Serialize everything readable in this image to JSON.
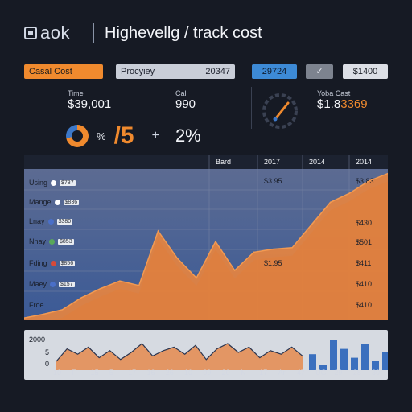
{
  "header": {
    "logo_text": "aok",
    "title": "Highevellg / track cost"
  },
  "filters": {
    "cost_label": "Casal Cost",
    "provider_label": "Procyiey",
    "provider_value": "20347",
    "blue_value": "29724",
    "check_glyph": "✓",
    "light_value": "$1400"
  },
  "stats": {
    "time_label": "Time",
    "time_value": "$39,001",
    "call_label": "Call",
    "call_value": "990",
    "pct_small": "%",
    "pct_big": "/5",
    "plus_glyph": "+",
    "pct2": "2%",
    "yoba_label": "Yoba Cast",
    "yoba_value_white": "$1.8",
    "yoba_value_orange": "3369"
  },
  "main_chart": {
    "col_headers": [
      "Bard",
      "2017",
      "2014",
      "2014"
    ],
    "rows": [
      {
        "label": "Using",
        "chip": "$787"
      },
      {
        "label": "Mange",
        "chip": "$836"
      },
      {
        "label": "Lnay",
        "chip": "$380"
      },
      {
        "label": "Nnay",
        "chip": "$853"
      },
      {
        "label": "Fding",
        "chip": "$856"
      },
      {
        "label": "Maey",
        "chip": "$157"
      },
      {
        "label": "Froe",
        "chip": ""
      }
    ],
    "row_dot_colors": [
      "#ffffff",
      "#ffffff",
      "#4a6fc8",
      "#59a85a",
      "#d64a3a",
      "#4a6fc8",
      "#ffffff"
    ],
    "mid_values": [
      "$3.95",
      "$1.95"
    ],
    "right_values": [
      "$3.83",
      "$430",
      "$501",
      "$411",
      "$410",
      "$410"
    ]
  },
  "chart_data": {
    "type": "area",
    "title": "",
    "x": [
      0,
      1,
      2,
      3,
      4,
      5,
      6,
      7,
      8,
      9,
      10,
      11,
      12,
      13,
      14,
      15,
      16,
      17,
      18,
      19
    ],
    "series": [
      {
        "values": [
          3,
          8,
          14,
          30,
          42,
          52,
          46,
          118,
          82,
          56,
          104,
          66,
          90,
          94,
          96,
          126,
          156,
          168,
          184,
          194
        ]
      }
    ],
    "ylim": [
      0,
      200
    ],
    "colors": {
      "area": "#e68440",
      "line": "#f29a52",
      "shadow": "#8a3f1a",
      "band_top": "#5c6b92",
      "band_bottom": "#3b5a96"
    }
  },
  "mini_chart": {
    "y_labels": [
      "2000",
      "5",
      "0"
    ],
    "x_labels": [
      "10",
      "F",
      "15",
      "5",
      "17",
      "16",
      "26",
      "10",
      "09",
      "20",
      "N",
      "17",
      "Arl",
      "47",
      "UG",
      "29",
      "28",
      "30"
    ],
    "area_values": [
      10,
      24,
      18,
      26,
      14,
      22,
      12,
      20,
      30,
      16,
      22,
      26,
      18,
      28,
      12,
      24,
      30,
      20,
      26,
      14,
      22,
      18,
      26,
      16
    ],
    "bar_values": [
      18,
      6,
      34,
      24,
      14,
      30,
      10,
      20
    ],
    "ymax": 40,
    "colors": {
      "area": "#e58a4e",
      "line": "#2a3550",
      "bar": "#3a6fbe"
    }
  }
}
